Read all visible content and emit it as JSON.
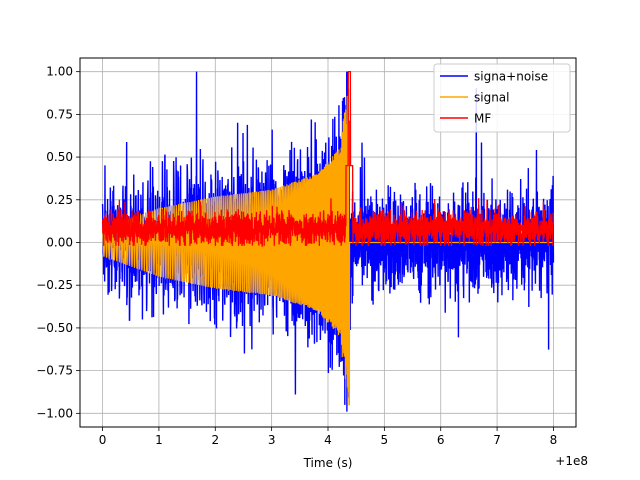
{
  "chart_data": {
    "type": "line",
    "title": "",
    "xlabel": "Time (s)",
    "ylabel": "",
    "x_offset_label": "+1e8",
    "xlim": [
      -0.4,
      8.4
    ],
    "ylim": [
      -1.08,
      1.08
    ],
    "grid": true,
    "legend_position": "top-right",
    "xticks": [
      0,
      1,
      2,
      3,
      4,
      5,
      6,
      7,
      8
    ],
    "xtick_labels": [
      "0",
      "1",
      "2",
      "3",
      "4",
      "5",
      "6",
      "7",
      "8"
    ],
    "yticks": [
      -1.0,
      -0.75,
      -0.5,
      -0.25,
      0.0,
      0.25,
      0.5,
      0.75,
      1.0
    ],
    "ytick_labels": [
      "−1.00",
      "−0.75",
      "−0.50",
      "−0.25",
      "0.00",
      "0.25",
      "0.50",
      "0.75",
      "1.00"
    ],
    "series": [
      {
        "name": "signa+noise",
        "color": "#0000ff",
        "x_range": [
          0,
          8
        ],
        "noise_amplitude": 0.32,
        "max_value": 1.0,
        "min_value": -0.99,
        "description": "noisy chirp signal plus noise"
      },
      {
        "name": "signal",
        "color": "#ffa500",
        "x_range": [
          0,
          4.38
        ],
        "start_envelope": 0.08,
        "envelope_at_x": [
          [
            0,
            0.08
          ],
          [
            1,
            0.2
          ],
          [
            2,
            0.27
          ],
          [
            3,
            0.31
          ],
          [
            3.8,
            0.4
          ],
          [
            4.2,
            0.55
          ],
          [
            4.38,
            0.96
          ]
        ],
        "min_value": -0.95,
        "description": "chirp oscillation growing to merger at ~4.38, zero afterwards"
      },
      {
        "name": "MF",
        "color": "#ff0000",
        "x_range": [
          0,
          8
        ],
        "baseline": 0.08,
        "noise_amplitude": 0.09,
        "peak_x": 4.38,
        "peak_value": 1.0,
        "description": "matched filter output with sharp peak at ~4.38"
      }
    ]
  }
}
